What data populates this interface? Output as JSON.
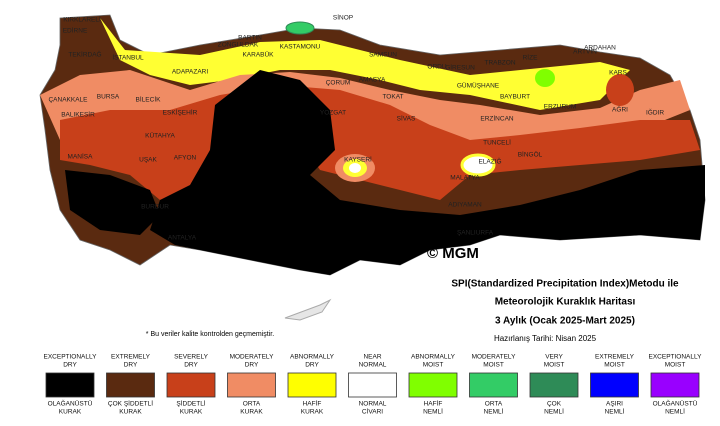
{
  "title_lines": [
    "SPI(Standardized Precipitation Index)Metodu ile",
    "Meteorolojik Kuraklık Haritası",
    "3 Aylık (Ocak 2025-Mart 2025)"
  ],
  "date": "Hazırlanış Tarihi: Nisan 2025",
  "copyright": "© MGM",
  "footnote": "* Bu veriler kalite kontrolden geçmemiştir.",
  "cities": [
    "KIRKLARELİ",
    "EDİRNE",
    "TEKİRDAĞ",
    "İSTANBUL",
    "ÇANAKKALE",
    "BALIKESİR",
    "BURSA",
    "BİLECİK",
    "ESKİŞEHİR",
    "KÜTAHYA",
    "MANİSA",
    "UŞAK",
    "AFYON",
    "BURDUR",
    "ANTALYA",
    "BARTIN",
    "SİNOP",
    "ZONGULDAK",
    "KARABÜK",
    "KASTAMONU",
    "ADAPAZARI",
    "SAMSUN",
    "ORDU",
    "GİRESUN",
    "TRABZON",
    "RİZE",
    "ARTVİN",
    "ARDAHAN",
    "KARS",
    "AĞRI",
    "IĞDIR",
    "ÇORUM",
    "AMASYA",
    "TOKAT",
    "YOZGAT",
    "SİVAS",
    "KAYSERİ",
    "GÜMÜŞHANE",
    "BAYBURT",
    "ERZİNCAN",
    "ERZURUM",
    "TUNCELİ",
    "BİNGÖL",
    "ELAZIĞ",
    "MALATYA",
    "ADIYAMAN",
    "ŞANLIURFA"
  ],
  "legend": [
    {
      "en": [
        "EXCEPTIONALLY",
        "DRY"
      ],
      "tr": [
        "OLAĞANÜSTÜ",
        "KURAK"
      ],
      "color": "#000000"
    },
    {
      "en": [
        "EXTREMELY",
        "DRY"
      ],
      "tr": [
        "ÇOK ŞİDDETLİ",
        "KURAK"
      ],
      "color": "#5a2a10"
    },
    {
      "en": [
        "SEVERELY",
        "DRY"
      ],
      "tr": [
        "ŞİDDETLİ",
        "KURAK"
      ],
      "color": "#c8401a"
    },
    {
      "en": [
        "MODERATELY",
        "DRY"
      ],
      "tr": [
        "ORTA",
        "KURAK"
      ],
      "color": "#f08c64"
    },
    {
      "en": [
        "ABNORMALLY",
        "DRY"
      ],
      "tr": [
        "HAFİF",
        "KURAK"
      ],
      "color": "#ffff00"
    },
    {
      "en": [
        "NEAR",
        "NORMAL"
      ],
      "tr": [
        "NORMAL",
        "CİVARI"
      ],
      "color": "#ffffff"
    },
    {
      "en": [
        "ABNORMALLY",
        "MOIST"
      ],
      "tr": [
        "HAFİF",
        "NEMLİ"
      ],
      "color": "#80ff00"
    },
    {
      "en": [
        "MODERATELY",
        "MOIST"
      ],
      "tr": [
        "ORTA",
        "NEMLİ"
      ],
      "color": "#33cc66"
    },
    {
      "en": [
        "VERY",
        "MOIST"
      ],
      "tr": [
        "ÇOK",
        "NEMLİ"
      ],
      "color": "#2e8b57"
    },
    {
      "en": [
        "EXTREMELY",
        "MOIST"
      ],
      "tr": [
        "AŞIRI",
        "NEMLİ"
      ],
      "color": "#0000ff"
    },
    {
      "en": [
        "EXCEPTIONALLY",
        "MOIST"
      ],
      "tr": [
        "OLAĞANÜSTÜ",
        "NEMLİ"
      ],
      "color": "#9900ff"
    }
  ]
}
